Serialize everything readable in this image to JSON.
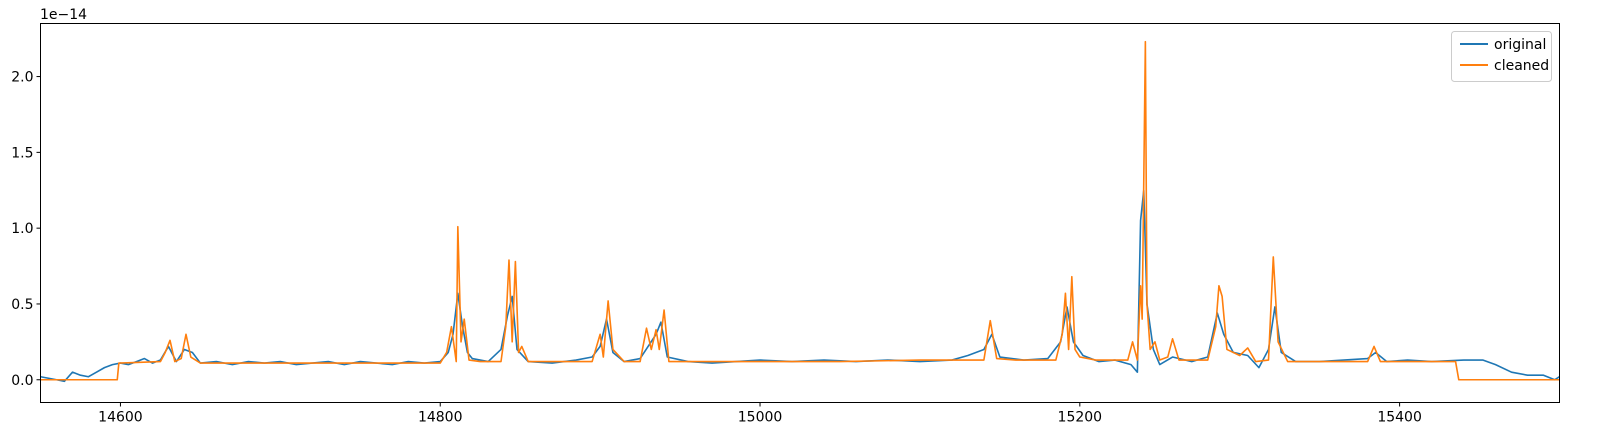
{
  "chart_data": {
    "type": "line",
    "title": "",
    "xlabel": "",
    "ylabel": "",
    "offset_text": "1e−14",
    "xlim": [
      14550,
      15500
    ],
    "ylim": [
      -0.15,
      2.35
    ],
    "xticks": [
      14600,
      14800,
      15000,
      15200,
      15400
    ],
    "xtick_labels": [
      "14600",
      "14800",
      "15000",
      "15200",
      "15400"
    ],
    "yticks": [
      0.0,
      0.5,
      1.0,
      1.5,
      2.0
    ],
    "ytick_labels": [
      "0.0",
      "0.5",
      "1.0",
      "1.5",
      "2.0"
    ],
    "grid": false,
    "legend_position": "top-right",
    "series": [
      {
        "name": "original",
        "color": "#1f77b4",
        "points": [
          [
            14550,
            0.02
          ],
          [
            14555,
            0.01
          ],
          [
            14560,
            0.0
          ],
          [
            14565,
            -0.01
          ],
          [
            14570,
            0.05
          ],
          [
            14575,
            0.03
          ],
          [
            14580,
            0.02
          ],
          [
            14585,
            0.05
          ],
          [
            14590,
            0.08
          ],
          [
            14595,
            0.1
          ],
          [
            14600,
            0.11
          ],
          [
            14605,
            0.1
          ],
          [
            14610,
            0.12
          ],
          [
            14615,
            0.14
          ],
          [
            14620,
            0.11
          ],
          [
            14625,
            0.13
          ],
          [
            14630,
            0.22
          ],
          [
            14635,
            0.12
          ],
          [
            14640,
            0.2
          ],
          [
            14645,
            0.18
          ],
          [
            14650,
            0.11
          ],
          [
            14660,
            0.12
          ],
          [
            14670,
            0.1
          ],
          [
            14680,
            0.12
          ],
          [
            14690,
            0.11
          ],
          [
            14700,
            0.12
          ],
          [
            14710,
            0.1
          ],
          [
            14720,
            0.11
          ],
          [
            14730,
            0.12
          ],
          [
            14740,
            0.1
          ],
          [
            14750,
            0.12
          ],
          [
            14760,
            0.11
          ],
          [
            14770,
            0.1
          ],
          [
            14780,
            0.12
          ],
          [
            14790,
            0.11
          ],
          [
            14800,
            0.12
          ],
          [
            14805,
            0.18
          ],
          [
            14808,
            0.3
          ],
          [
            14811,
            0.57
          ],
          [
            14814,
            0.35
          ],
          [
            14817,
            0.18
          ],
          [
            14820,
            0.14
          ],
          [
            14830,
            0.12
          ],
          [
            14838,
            0.2
          ],
          [
            14842,
            0.42
          ],
          [
            14845,
            0.55
          ],
          [
            14848,
            0.2
          ],
          [
            14855,
            0.12
          ],
          [
            14870,
            0.11
          ],
          [
            14885,
            0.13
          ],
          [
            14895,
            0.15
          ],
          [
            14900,
            0.22
          ],
          [
            14904,
            0.4
          ],
          [
            14908,
            0.18
          ],
          [
            14915,
            0.12
          ],
          [
            14925,
            0.14
          ],
          [
            14930,
            0.22
          ],
          [
            14935,
            0.3
          ],
          [
            14938,
            0.38
          ],
          [
            14942,
            0.15
          ],
          [
            14955,
            0.12
          ],
          [
            14970,
            0.11
          ],
          [
            14985,
            0.12
          ],
          [
            15000,
            0.13
          ],
          [
            15020,
            0.12
          ],
          [
            15040,
            0.13
          ],
          [
            15060,
            0.12
          ],
          [
            15080,
            0.13
          ],
          [
            15100,
            0.12
          ],
          [
            15120,
            0.13
          ],
          [
            15130,
            0.16
          ],
          [
            15140,
            0.2
          ],
          [
            15145,
            0.3
          ],
          [
            15150,
            0.15
          ],
          [
            15165,
            0.13
          ],
          [
            15180,
            0.14
          ],
          [
            15188,
            0.25
          ],
          [
            15192,
            0.48
          ],
          [
            15196,
            0.25
          ],
          [
            15202,
            0.16
          ],
          [
            15212,
            0.12
          ],
          [
            15222,
            0.13
          ],
          [
            15232,
            0.1
          ],
          [
            15236,
            0.05
          ],
          [
            15238,
            1.05
          ],
          [
            15240,
            1.25
          ],
          [
            15242,
            0.5
          ],
          [
            15246,
            0.2
          ],
          [
            15250,
            0.1
          ],
          [
            15258,
            0.15
          ],
          [
            15270,
            0.12
          ],
          [
            15280,
            0.15
          ],
          [
            15286,
            0.44
          ],
          [
            15290,
            0.3
          ],
          [
            15296,
            0.18
          ],
          [
            15305,
            0.16
          ],
          [
            15312,
            0.08
          ],
          [
            15318,
            0.2
          ],
          [
            15322,
            0.48
          ],
          [
            15326,
            0.18
          ],
          [
            15335,
            0.12
          ],
          [
            15350,
            0.12
          ],
          [
            15365,
            0.13
          ],
          [
            15380,
            0.14
          ],
          [
            15385,
            0.18
          ],
          [
            15392,
            0.12
          ],
          [
            15405,
            0.13
          ],
          [
            15420,
            0.12
          ],
          [
            15440,
            0.13
          ],
          [
            15452,
            0.13
          ],
          [
            15460,
            0.1
          ],
          [
            15470,
            0.05
          ],
          [
            15480,
            0.03
          ],
          [
            15490,
            0.03
          ],
          [
            15497,
            0.0
          ],
          [
            15500,
            0.02
          ]
        ]
      },
      {
        "name": "cleaned",
        "color": "#ff7f0e",
        "points": [
          [
            14550,
            0.0
          ],
          [
            14598,
            0.0
          ],
          [
            14599,
            0.11
          ],
          [
            14625,
            0.12
          ],
          [
            14628,
            0.18
          ],
          [
            14631,
            0.26
          ],
          [
            14634,
            0.12
          ],
          [
            14638,
            0.14
          ],
          [
            14641,
            0.3
          ],
          [
            14644,
            0.15
          ],
          [
            14650,
            0.11
          ],
          [
            14700,
            0.11
          ],
          [
            14750,
            0.11
          ],
          [
            14800,
            0.11
          ],
          [
            14804,
            0.18
          ],
          [
            14807,
            0.35
          ],
          [
            14810,
            0.12
          ],
          [
            14811,
            1.01
          ],
          [
            14813,
            0.25
          ],
          [
            14815,
            0.4
          ],
          [
            14818,
            0.13
          ],
          [
            14825,
            0.12
          ],
          [
            14838,
            0.12
          ],
          [
            14841,
            0.35
          ],
          [
            14843,
            0.79
          ],
          [
            14845,
            0.25
          ],
          [
            14847,
            0.78
          ],
          [
            14849,
            0.18
          ],
          [
            14851,
            0.22
          ],
          [
            14855,
            0.12
          ],
          [
            14880,
            0.12
          ],
          [
            14895,
            0.12
          ],
          [
            14900,
            0.3
          ],
          [
            14902,
            0.15
          ],
          [
            14905,
            0.52
          ],
          [
            14908,
            0.2
          ],
          [
            14915,
            0.12
          ],
          [
            14925,
            0.12
          ],
          [
            14929,
            0.34
          ],
          [
            14932,
            0.2
          ],
          [
            14935,
            0.33
          ],
          [
            14937,
            0.2
          ],
          [
            14940,
            0.46
          ],
          [
            14943,
            0.12
          ],
          [
            14960,
            0.12
          ],
          [
            15000,
            0.12
          ],
          [
            15050,
            0.12
          ],
          [
            15100,
            0.13
          ],
          [
            15140,
            0.13
          ],
          [
            15144,
            0.39
          ],
          [
            15148,
            0.14
          ],
          [
            15160,
            0.13
          ],
          [
            15185,
            0.13
          ],
          [
            15189,
            0.3
          ],
          [
            15191,
            0.57
          ],
          [
            15193,
            0.2
          ],
          [
            15195,
            0.68
          ],
          [
            15197,
            0.2
          ],
          [
            15200,
            0.15
          ],
          [
            15210,
            0.13
          ],
          [
            15230,
            0.13
          ],
          [
            15233,
            0.25
          ],
          [
            15236,
            0.13
          ],
          [
            15238,
            0.62
          ],
          [
            15239,
            0.4
          ],
          [
            15241,
            2.23
          ],
          [
            15242,
            0.5
          ],
          [
            15244,
            0.2
          ],
          [
            15247,
            0.25
          ],
          [
            15250,
            0.13
          ],
          [
            15255,
            0.15
          ],
          [
            15258,
            0.27
          ],
          [
            15262,
            0.13
          ],
          [
            15280,
            0.13
          ],
          [
            15285,
            0.35
          ],
          [
            15287,
            0.62
          ],
          [
            15289,
            0.55
          ],
          [
            15292,
            0.2
          ],
          [
            15300,
            0.16
          ],
          [
            15305,
            0.21
          ],
          [
            15310,
            0.12
          ],
          [
            15318,
            0.13
          ],
          [
            15321,
            0.81
          ],
          [
            15324,
            0.25
          ],
          [
            15330,
            0.12
          ],
          [
            15380,
            0.12
          ],
          [
            15384,
            0.22
          ],
          [
            15388,
            0.12
          ],
          [
            15420,
            0.12
          ],
          [
            15435,
            0.12
          ],
          [
            15437,
            0.0
          ],
          [
            15500,
            0.0
          ]
        ]
      }
    ]
  }
}
